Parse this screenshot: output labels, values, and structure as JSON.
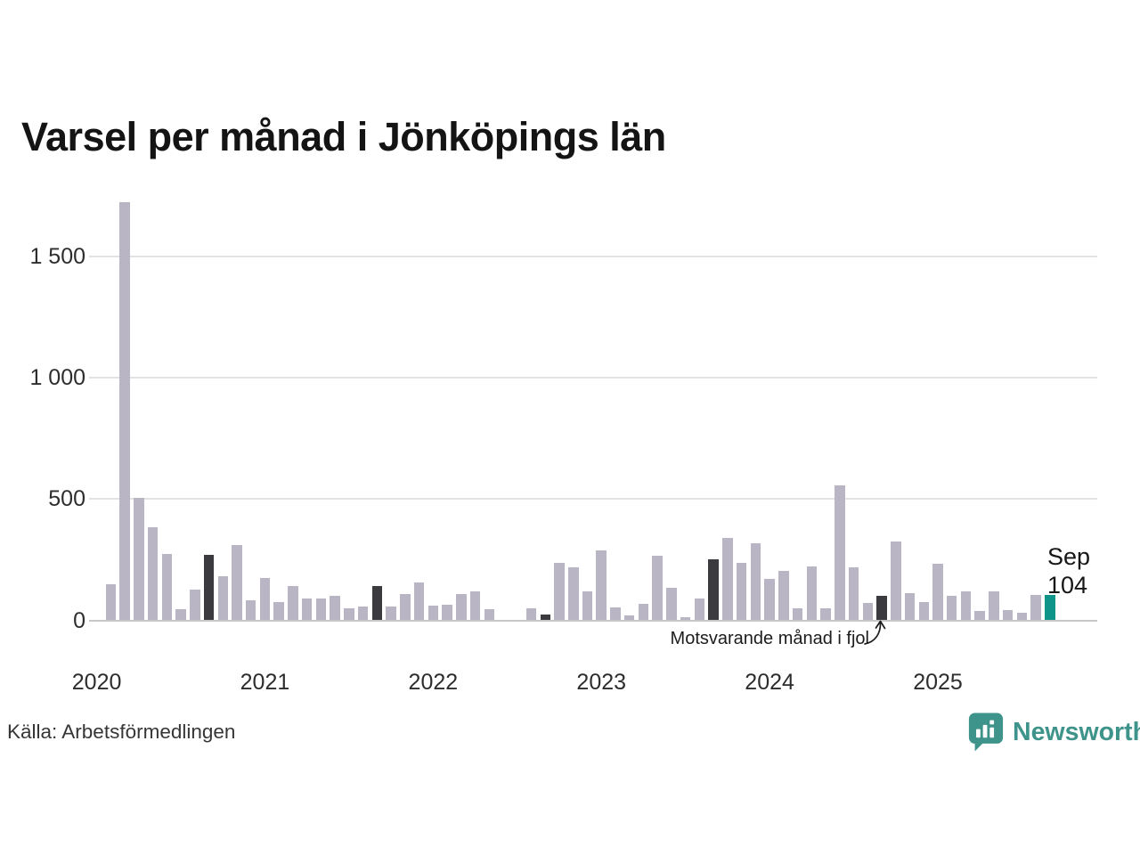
{
  "title": "Varsel per månad i Jönköpings län",
  "source": "Källa: Arbetsförmedlingen",
  "logo": {
    "text": "Newsworthy"
  },
  "annotation": {
    "text": "Motsvarande månad i fjol"
  },
  "highlight": {
    "month": "Sep",
    "value": "104"
  },
  "colors": {
    "bar": "#b9b5c4",
    "bar_dark": "#3a3a3f",
    "accent": "#0f9489",
    "brand": "#3e938a",
    "grid": "#e3e3e6",
    "axis_line": "#c7c7ca"
  },
  "chart_data": {
    "type": "bar",
    "title": "Varsel per månad i Jönköpings län",
    "xlabel": "",
    "ylabel": "",
    "ylim": [
      0,
      1750
    ],
    "grid": true,
    "yticks": [
      {
        "value": 0,
        "label": "0"
      },
      {
        "value": 500,
        "label": "500"
      },
      {
        "value": 1000,
        "label": "1 000"
      },
      {
        "value": 1500,
        "label": "1 500"
      }
    ],
    "year_labels": [
      "2020",
      "2021",
      "2022",
      "2023",
      "2024",
      "2025"
    ],
    "series_name": "Varsel per månad",
    "points": [
      {
        "m": "2020-01",
        "v": 0,
        "s": "normal"
      },
      {
        "m": "2020-02",
        "v": 150,
        "s": "normal"
      },
      {
        "m": "2020-03",
        "v": 1725,
        "s": "normal"
      },
      {
        "m": "2020-04",
        "v": 505,
        "s": "normal"
      },
      {
        "m": "2020-05",
        "v": 385,
        "s": "normal"
      },
      {
        "m": "2020-06",
        "v": 272,
        "s": "normal"
      },
      {
        "m": "2020-07",
        "v": 45,
        "s": "normal"
      },
      {
        "m": "2020-08",
        "v": 125,
        "s": "normal"
      },
      {
        "m": "2020-09",
        "v": 270,
        "s": "dark"
      },
      {
        "m": "2020-10",
        "v": 182,
        "s": "normal"
      },
      {
        "m": "2020-11",
        "v": 310,
        "s": "normal"
      },
      {
        "m": "2020-12",
        "v": 83,
        "s": "normal"
      },
      {
        "m": "2021-01",
        "v": 175,
        "s": "normal"
      },
      {
        "m": "2021-02",
        "v": 77,
        "s": "normal"
      },
      {
        "m": "2021-03",
        "v": 140,
        "s": "normal"
      },
      {
        "m": "2021-04",
        "v": 91,
        "s": "normal"
      },
      {
        "m": "2021-05",
        "v": 91,
        "s": "normal"
      },
      {
        "m": "2021-06",
        "v": 102,
        "s": "normal"
      },
      {
        "m": "2021-07",
        "v": 48,
        "s": "normal"
      },
      {
        "m": "2021-08",
        "v": 58,
        "s": "normal"
      },
      {
        "m": "2021-09",
        "v": 140,
        "s": "dark"
      },
      {
        "m": "2021-10",
        "v": 58,
        "s": "normal"
      },
      {
        "m": "2021-11",
        "v": 110,
        "s": "normal"
      },
      {
        "m": "2021-12",
        "v": 157,
        "s": "normal"
      },
      {
        "m": "2022-01",
        "v": 62,
        "s": "normal"
      },
      {
        "m": "2022-02",
        "v": 65,
        "s": "normal"
      },
      {
        "m": "2022-03",
        "v": 108,
        "s": "normal"
      },
      {
        "m": "2022-04",
        "v": 119,
        "s": "normal"
      },
      {
        "m": "2022-05",
        "v": 46,
        "s": "normal"
      },
      {
        "m": "2022-06",
        "v": 0,
        "s": "normal"
      },
      {
        "m": "2022-07",
        "v": 0,
        "s": "normal"
      },
      {
        "m": "2022-08",
        "v": 48,
        "s": "normal"
      },
      {
        "m": "2022-09",
        "v": 23,
        "s": "dark"
      },
      {
        "m": "2022-10",
        "v": 238,
        "s": "normal"
      },
      {
        "m": "2022-11",
        "v": 218,
        "s": "normal"
      },
      {
        "m": "2022-12",
        "v": 119,
        "s": "normal"
      },
      {
        "m": "2023-01",
        "v": 288,
        "s": "normal"
      },
      {
        "m": "2023-02",
        "v": 55,
        "s": "normal"
      },
      {
        "m": "2023-03",
        "v": 22,
        "s": "normal"
      },
      {
        "m": "2023-04",
        "v": 68,
        "s": "normal"
      },
      {
        "m": "2023-05",
        "v": 268,
        "s": "normal"
      },
      {
        "m": "2023-06",
        "v": 135,
        "s": "normal"
      },
      {
        "m": "2023-07",
        "v": 12,
        "s": "normal"
      },
      {
        "m": "2023-08",
        "v": 91,
        "s": "normal"
      },
      {
        "m": "2023-09",
        "v": 253,
        "s": "dark"
      },
      {
        "m": "2023-10",
        "v": 340,
        "s": "normal"
      },
      {
        "m": "2023-11",
        "v": 236,
        "s": "normal"
      },
      {
        "m": "2023-12",
        "v": 318,
        "s": "normal"
      },
      {
        "m": "2024-01",
        "v": 172,
        "s": "normal"
      },
      {
        "m": "2024-02",
        "v": 203,
        "s": "normal"
      },
      {
        "m": "2024-03",
        "v": 48,
        "s": "normal"
      },
      {
        "m": "2024-04",
        "v": 222,
        "s": "normal"
      },
      {
        "m": "2024-05",
        "v": 51,
        "s": "normal"
      },
      {
        "m": "2024-06",
        "v": 555,
        "s": "normal"
      },
      {
        "m": "2024-07",
        "v": 219,
        "s": "normal"
      },
      {
        "m": "2024-08",
        "v": 70,
        "s": "normal"
      },
      {
        "m": "2024-09",
        "v": 100,
        "s": "dark"
      },
      {
        "m": "2024-10",
        "v": 325,
        "s": "normal"
      },
      {
        "m": "2024-11",
        "v": 113,
        "s": "normal"
      },
      {
        "m": "2024-12",
        "v": 76,
        "s": "normal"
      },
      {
        "m": "2025-01",
        "v": 233,
        "s": "normal"
      },
      {
        "m": "2025-02",
        "v": 100,
        "s": "normal"
      },
      {
        "m": "2025-03",
        "v": 118,
        "s": "normal"
      },
      {
        "m": "2025-04",
        "v": 40,
        "s": "normal"
      },
      {
        "m": "2025-05",
        "v": 120,
        "s": "normal"
      },
      {
        "m": "2025-06",
        "v": 43,
        "s": "normal"
      },
      {
        "m": "2025-07",
        "v": 30,
        "s": "normal"
      },
      {
        "m": "2025-08",
        "v": 103,
        "s": "normal"
      },
      {
        "m": "2025-09",
        "v": 104,
        "s": "accent"
      }
    ]
  }
}
